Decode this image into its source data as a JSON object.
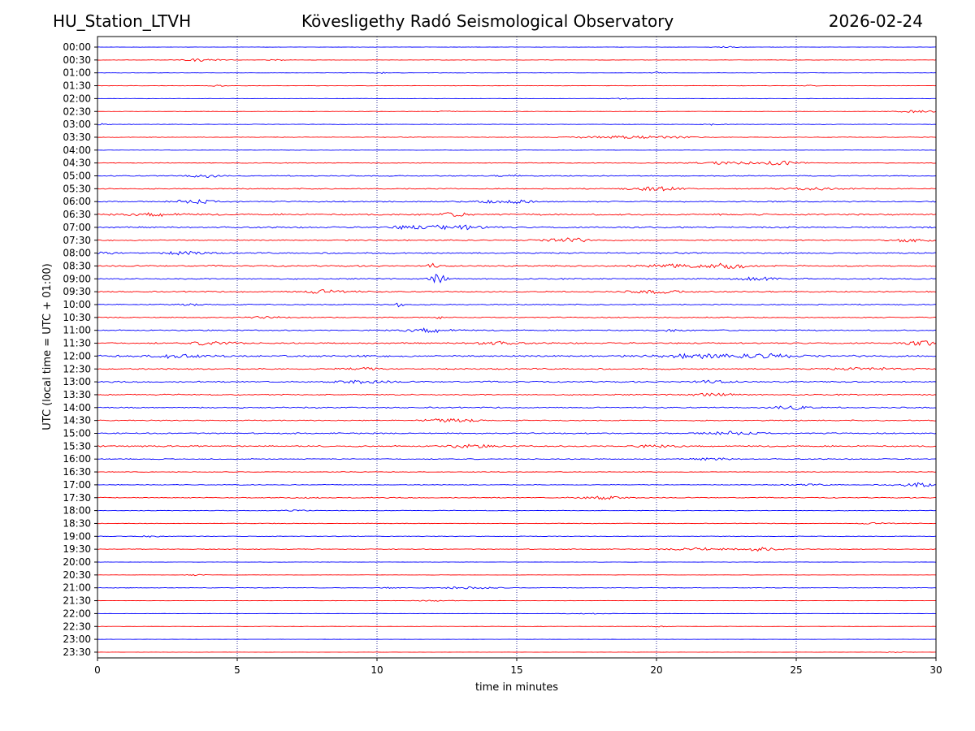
{
  "header": {
    "station": "HU_Station_LTVH",
    "observatory": "Kövesligethy Radó Seismological Observatory",
    "date": "2026-02-24"
  },
  "chart_data": {
    "type": "line",
    "title": "Kövesligethy Radó Seismological Observatory",
    "xlabel": "time in minutes",
    "ylabel": "UTC (local time = UTC + 01:00)",
    "xlim": [
      0,
      30
    ],
    "xticks": [
      0,
      5,
      10,
      15,
      20,
      25,
      30
    ],
    "x_gridlines": [
      5,
      10,
      15,
      20,
      25
    ],
    "grid": "vertical dotted",
    "series_colors": [
      "#0000ff",
      "#ff0000"
    ],
    "series": [
      {
        "name": "00:00",
        "color": "#0000ff",
        "noise": 0.15,
        "events": [
          {
            "t": 22.5,
            "amp": 0.8,
            "width": 0.5
          }
        ]
      },
      {
        "name": "00:30",
        "color": "#ff0000",
        "noise": 0.2,
        "events": [
          {
            "t": 3.7,
            "amp": 1.6,
            "width": 0.6
          },
          {
            "t": 6.4,
            "amp": 0.6,
            "width": 0.3
          }
        ]
      },
      {
        "name": "01:00",
        "color": "#0000ff",
        "noise": 0.15,
        "events": [
          {
            "t": 10.2,
            "amp": 1.0,
            "width": 0.2
          },
          {
            "t": 20.0,
            "amp": 1.0,
            "width": 0.2
          }
        ]
      },
      {
        "name": "01:30",
        "color": "#ff0000",
        "noise": 0.2,
        "events": [
          {
            "t": 4.3,
            "amp": 0.8,
            "width": 0.3
          },
          {
            "t": 25.5,
            "amp": 0.6,
            "width": 0.3
          }
        ]
      },
      {
        "name": "02:00",
        "color": "#0000ff",
        "noise": 0.18,
        "events": [
          {
            "t": 18.8,
            "amp": 0.6,
            "width": 0.3
          }
        ]
      },
      {
        "name": "02:30",
        "color": "#ff0000",
        "noise": 0.2,
        "events": [
          {
            "t": 12.5,
            "amp": 0.7,
            "width": 0.3
          },
          {
            "t": 29.3,
            "amp": 1.2,
            "width": 0.8
          }
        ]
      },
      {
        "name": "03:00",
        "color": "#0000ff",
        "noise": 0.25,
        "events": [
          {
            "t": 0.1,
            "amp": 0.8,
            "width": 0.3
          },
          {
            "t": 22.0,
            "amp": 0.8,
            "width": 0.4
          }
        ]
      },
      {
        "name": "03:30",
        "color": "#ff0000",
        "noise": 0.3,
        "events": [
          {
            "t": 18.5,
            "amp": 1.4,
            "width": 1.6
          },
          {
            "t": 20.5,
            "amp": 0.9,
            "width": 1.0
          }
        ]
      },
      {
        "name": "04:00",
        "color": "#0000ff",
        "noise": 0.2,
        "events": []
      },
      {
        "name": "04:30",
        "color": "#ff0000",
        "noise": 0.35,
        "events": [
          {
            "t": 22.5,
            "amp": 1.4,
            "width": 1.2
          },
          {
            "t": 24.5,
            "amp": 2.2,
            "width": 0.7
          }
        ]
      },
      {
        "name": "05:00",
        "color": "#0000ff",
        "noise": 0.5,
        "events": [
          {
            "t": 3.8,
            "amp": 1.6,
            "width": 0.6
          },
          {
            "t": 14.7,
            "amp": 0.9,
            "width": 0.4
          }
        ]
      },
      {
        "name": "05:30",
        "color": "#ff0000",
        "noise": 0.5,
        "events": [
          {
            "t": 20.0,
            "amp": 2.0,
            "width": 0.9
          },
          {
            "t": 25.5,
            "amp": 1.2,
            "width": 1.2
          }
        ]
      },
      {
        "name": "06:00",
        "color": "#0000ff",
        "noise": 0.6,
        "events": [
          {
            "t": 3.5,
            "amp": 2.4,
            "width": 0.7
          },
          {
            "t": 14.7,
            "amp": 2.2,
            "width": 0.9
          }
        ]
      },
      {
        "name": "06:30",
        "color": "#ff0000",
        "noise": 0.8,
        "events": [
          {
            "t": 2.0,
            "amp": 1.4,
            "width": 1.2
          },
          {
            "t": 12.8,
            "amp": 1.6,
            "width": 0.6
          }
        ]
      },
      {
        "name": "07:00",
        "color": "#0000ff",
        "noise": 0.7,
        "events": [
          {
            "t": 12.8,
            "amp": 2.4,
            "width": 1.2
          },
          {
            "t": 11.0,
            "amp": 1.6,
            "width": 0.6
          }
        ]
      },
      {
        "name": "07:30",
        "color": "#ff0000",
        "noise": 0.6,
        "events": [
          {
            "t": 16.8,
            "amp": 2.6,
            "width": 0.7
          },
          {
            "t": 29.2,
            "amp": 1.8,
            "width": 0.8
          }
        ]
      },
      {
        "name": "08:00",
        "color": "#0000ff",
        "noise": 0.7,
        "events": [
          {
            "t": 3.2,
            "amp": 1.8,
            "width": 0.7
          },
          {
            "t": 0.3,
            "amp": 1.2,
            "width": 0.5
          }
        ]
      },
      {
        "name": "08:30",
        "color": "#ff0000",
        "noise": 0.7,
        "events": [
          {
            "t": 20.5,
            "amp": 2.0,
            "width": 1.0
          },
          {
            "t": 22.5,
            "amp": 2.6,
            "width": 0.8
          },
          {
            "t": 12.0,
            "amp": 2.4,
            "width": 0.2
          }
        ]
      },
      {
        "name": "09:00",
        "color": "#0000ff",
        "noise": 0.6,
        "events": [
          {
            "t": 12.2,
            "amp": 6.0,
            "width": 0.25
          },
          {
            "t": 23.5,
            "amp": 1.8,
            "width": 0.9
          }
        ]
      },
      {
        "name": "09:30",
        "color": "#ff0000",
        "noise": 0.6,
        "events": [
          {
            "t": 8.2,
            "amp": 2.2,
            "width": 0.9
          },
          {
            "t": 20.0,
            "amp": 1.6,
            "width": 1.0
          }
        ]
      },
      {
        "name": "10:00",
        "color": "#0000ff",
        "noise": 0.5,
        "events": [
          {
            "t": 10.8,
            "amp": 4.5,
            "width": 0.12
          },
          {
            "t": 3.4,
            "amp": 0.9,
            "width": 0.4
          }
        ]
      },
      {
        "name": "10:30",
        "color": "#ff0000",
        "noise": 0.5,
        "events": [
          {
            "t": 6.0,
            "amp": 1.0,
            "width": 0.6
          },
          {
            "t": 12.2,
            "amp": 3.5,
            "width": 0.08
          }
        ]
      },
      {
        "name": "11:00",
        "color": "#0000ff",
        "noise": 0.6,
        "events": [
          {
            "t": 11.8,
            "amp": 2.2,
            "width": 0.9
          },
          {
            "t": 20.6,
            "amp": 1.2,
            "width": 0.4
          }
        ]
      },
      {
        "name": "11:30",
        "color": "#ff0000",
        "noise": 0.7,
        "events": [
          {
            "t": 4.2,
            "amp": 2.4,
            "width": 0.7
          },
          {
            "t": 14.2,
            "amp": 1.6,
            "width": 0.8
          },
          {
            "t": 29.6,
            "amp": 2.4,
            "width": 0.6
          }
        ]
      },
      {
        "name": "12:00",
        "color": "#0000ff",
        "noise": 0.9,
        "events": [
          {
            "t": 2.8,
            "amp": 1.8,
            "width": 0.8
          },
          {
            "t": 21.5,
            "amp": 2.4,
            "width": 1.2
          },
          {
            "t": 23.9,
            "amp": 2.6,
            "width": 0.9
          }
        ]
      },
      {
        "name": "12:30",
        "color": "#ff0000",
        "noise": 0.7,
        "events": [
          {
            "t": 9.5,
            "amp": 1.6,
            "width": 0.6
          },
          {
            "t": 27.5,
            "amp": 1.2,
            "width": 1.2
          }
        ]
      },
      {
        "name": "13:00",
        "color": "#0000ff",
        "noise": 0.7,
        "events": [
          {
            "t": 9.5,
            "amp": 1.4,
            "width": 1.0
          },
          {
            "t": 22.0,
            "amp": 1.2,
            "width": 0.8
          }
        ]
      },
      {
        "name": "13:30",
        "color": "#ff0000",
        "noise": 0.6,
        "events": [
          {
            "t": 22.0,
            "amp": 1.2,
            "width": 1.0
          }
        ]
      },
      {
        "name": "14:00",
        "color": "#0000ff",
        "noise": 0.6,
        "events": [
          {
            "t": 24.9,
            "amp": 2.6,
            "width": 0.6
          }
        ]
      },
      {
        "name": "14:30",
        "color": "#ff0000",
        "noise": 0.5,
        "events": [
          {
            "t": 12.5,
            "amp": 1.8,
            "width": 0.8
          },
          {
            "t": 13.5,
            "amp": 1.2,
            "width": 0.2
          }
        ]
      },
      {
        "name": "15:00",
        "color": "#0000ff",
        "noise": 0.6,
        "events": [
          {
            "t": 22.7,
            "amp": 2.0,
            "width": 0.9
          }
        ]
      },
      {
        "name": "15:30",
        "color": "#ff0000",
        "noise": 0.7,
        "events": [
          {
            "t": 13.3,
            "amp": 1.6,
            "width": 0.8
          },
          {
            "t": 20.0,
            "amp": 1.2,
            "width": 1.0
          }
        ]
      },
      {
        "name": "16:00",
        "color": "#0000ff",
        "noise": 0.45,
        "events": [
          {
            "t": 22.0,
            "amp": 1.4,
            "width": 0.6
          }
        ]
      },
      {
        "name": "16:30",
        "color": "#ff0000",
        "noise": 0.3,
        "events": []
      },
      {
        "name": "17:00",
        "color": "#0000ff",
        "noise": 0.35,
        "events": [
          {
            "t": 29.3,
            "amp": 2.2,
            "width": 0.8
          },
          {
            "t": 25.5,
            "amp": 0.8,
            "width": 0.8
          }
        ]
      },
      {
        "name": "17:30",
        "color": "#ff0000",
        "noise": 0.45,
        "events": [
          {
            "t": 18.0,
            "amp": 1.8,
            "width": 0.8
          },
          {
            "t": 7.5,
            "amp": 0.8,
            "width": 0.4
          }
        ]
      },
      {
        "name": "18:00",
        "color": "#0000ff",
        "noise": 0.35,
        "events": [
          {
            "t": 7.2,
            "amp": 0.9,
            "width": 0.4
          }
        ]
      },
      {
        "name": "18:30",
        "color": "#ff0000",
        "noise": 0.3,
        "events": [
          {
            "t": 28.0,
            "amp": 0.9,
            "width": 0.8
          }
        ]
      },
      {
        "name": "19:00",
        "color": "#0000ff",
        "noise": 0.3,
        "events": [
          {
            "t": 1.9,
            "amp": 1.0,
            "width": 0.3
          }
        ]
      },
      {
        "name": "19:30",
        "color": "#ff0000",
        "noise": 0.35,
        "events": [
          {
            "t": 21.5,
            "amp": 1.6,
            "width": 1.0
          },
          {
            "t": 23.7,
            "amp": 2.0,
            "width": 0.7
          }
        ]
      },
      {
        "name": "20:00",
        "color": "#0000ff",
        "noise": 0.15,
        "events": []
      },
      {
        "name": "20:30",
        "color": "#ff0000",
        "noise": 0.15,
        "events": [
          {
            "t": 3.5,
            "amp": 0.8,
            "width": 0.3
          }
        ]
      },
      {
        "name": "21:00",
        "color": "#0000ff",
        "noise": 0.25,
        "events": [
          {
            "t": 13.3,
            "amp": 1.4,
            "width": 1.0
          },
          {
            "t": 10.5,
            "amp": 0.7,
            "width": 0.3
          }
        ]
      },
      {
        "name": "21:30",
        "color": "#ff0000",
        "noise": 0.15,
        "events": [
          {
            "t": 12.0,
            "amp": 0.6,
            "width": 0.8
          }
        ]
      },
      {
        "name": "22:00",
        "color": "#0000ff",
        "noise": 0.12,
        "events": [
          {
            "t": 17.5,
            "amp": 0.6,
            "width": 0.8
          }
        ]
      },
      {
        "name": "22:30",
        "color": "#ff0000",
        "noise": 0.15,
        "events": [
          {
            "t": 20.0,
            "amp": 0.6,
            "width": 0.5
          }
        ]
      },
      {
        "name": "23:00",
        "color": "#0000ff",
        "noise": 0.1,
        "events": []
      },
      {
        "name": "23:30",
        "color": "#ff0000",
        "noise": 0.1,
        "events": [
          {
            "t": 28.5,
            "amp": 0.6,
            "width": 0.4
          }
        ]
      }
    ]
  }
}
